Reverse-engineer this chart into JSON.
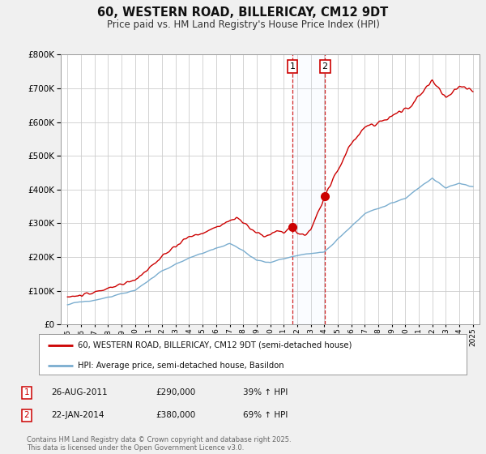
{
  "title": "60, WESTERN ROAD, BILLERICAY, CM12 9DT",
  "subtitle": "Price paid vs. HM Land Registry's House Price Index (HPI)",
  "legend_line1": "60, WESTERN ROAD, BILLERICAY, CM12 9DT (semi-detached house)",
  "legend_line2": "HPI: Average price, semi-detached house, Basildon",
  "footer": "Contains HM Land Registry data © Crown copyright and database right 2025.\nThis data is licensed under the Open Government Licence v3.0.",
  "event1_label": "1",
  "event1_date": "26-AUG-2011",
  "event1_price": "£290,000",
  "event1_hpi": "39% ↑ HPI",
  "event1_x": 2011.65,
  "event1_y": 290000,
  "event2_label": "2",
  "event2_date": "22-JAN-2014",
  "event2_price": "£380,000",
  "event2_hpi": "69% ↑ HPI",
  "event2_x": 2014.05,
  "event2_y": 380000,
  "red_color": "#cc0000",
  "blue_color": "#7aadcf",
  "shade_color": "#ddeeff",
  "background_color": "#f0f0f0",
  "plot_bg_color": "#ffffff",
  "grid_color": "#cccccc",
  "ylim": [
    0,
    800000
  ],
  "yticks": [
    0,
    100000,
    200000,
    300000,
    400000,
    500000,
    600000,
    700000,
    800000
  ],
  "xlim": [
    1994.5,
    2025.5
  ],
  "xticks": [
    1995,
    1996,
    1997,
    1998,
    1999,
    2000,
    2001,
    2002,
    2003,
    2004,
    2005,
    2006,
    2007,
    2008,
    2009,
    2010,
    2011,
    2012,
    2013,
    2014,
    2015,
    2016,
    2017,
    2018,
    2019,
    2020,
    2021,
    2022,
    2023,
    2024,
    2025
  ]
}
